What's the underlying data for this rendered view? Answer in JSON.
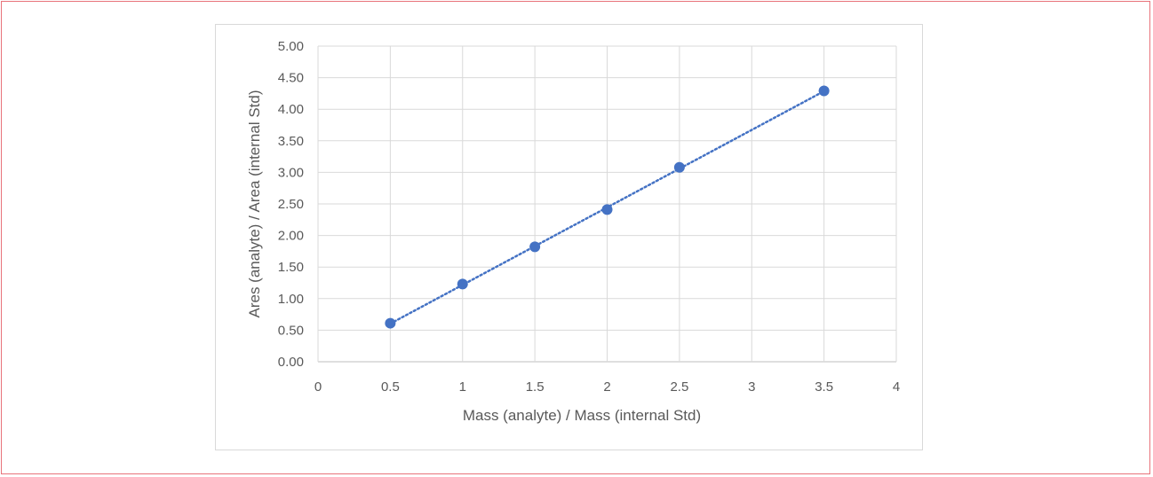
{
  "chart_data": {
    "type": "scatter",
    "xlabel": "Mass (analyte) / Mass (internal Std)",
    "ylabel": "Ares (analyte) / Area (internal Std)",
    "xlim": [
      0,
      4
    ],
    "ylim": [
      0,
      5
    ],
    "x_ticks": [
      "0",
      "0.5",
      "1",
      "1.5",
      "2",
      "2.5",
      "3",
      "3.5",
      "4"
    ],
    "y_ticks": [
      "0.00",
      "0.50",
      "1.00",
      "1.50",
      "2.00",
      "2.50",
      "3.00",
      "3.50",
      "4.00",
      "4.50",
      "5.00"
    ],
    "grid": true,
    "legend": "none",
    "trendline": "linear, dotted",
    "series": [
      {
        "x": [
          0.5,
          1.0,
          1.5,
          2.0,
          2.5,
          3.5
        ],
        "y": [
          0.61,
          1.23,
          1.82,
          2.41,
          3.08,
          4.29
        ],
        "color": "#4472c4"
      }
    ]
  }
}
